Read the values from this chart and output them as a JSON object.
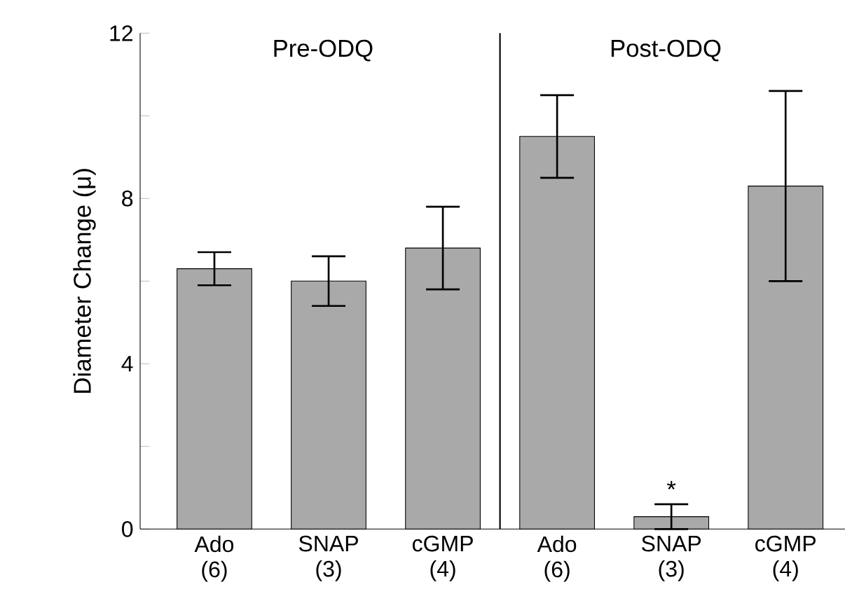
{
  "chart_data": {
    "type": "bar",
    "ylabel": "Diameter Change (μ)",
    "categories": [
      "Ado (6)",
      "SNAP (3)",
      "cGMP (4)",
      "Ado (6)",
      "SNAP (3)",
      "cGMP (4)"
    ],
    "values": [
      6.3,
      6.0,
      6.8,
      9.5,
      0.3,
      8.3
    ],
    "errors": [
      [
        5.9,
        6.7
      ],
      [
        5.4,
        6.6
      ],
      [
        5.8,
        7.8
      ],
      [
        8.5,
        10.5
      ],
      0.3,
      [
        6.0,
        10.6
      ]
    ],
    "color": "#a9a9a9",
    "ylim": [
      0,
      12
    ],
    "yticks": [
      0,
      {
        "value": 2,
        "label": null
      },
      4,
      {
        "value": 6,
        "label": null
      },
      8,
      {
        "value": 10,
        "label": null
      },
      12
    ],
    "annotations": [
      "Pre-ODQ",
      "Post-ODQ",
      "*"
    ]
  }
}
